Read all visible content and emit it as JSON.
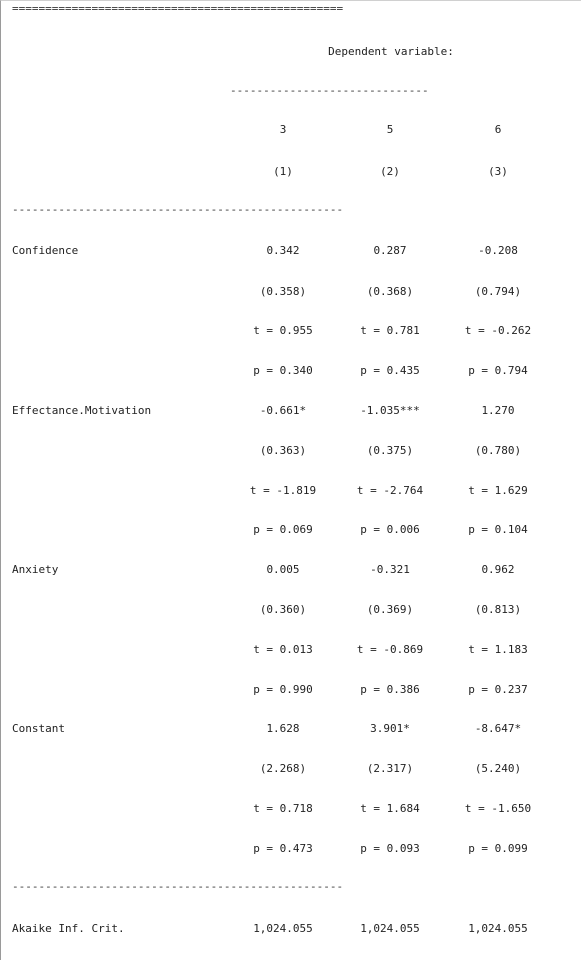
{
  "table": {
    "top_rule": "==================================================",
    "mid_rule": "--------------------------------------------------",
    "header_rule": "------------------------------",
    "dep_var_label": "Dependent variable:",
    "columns": [
      {
        "name": "3",
        "num": "(1)"
      },
      {
        "name": "5",
        "num": "(2)"
      },
      {
        "name": "6",
        "num": "(3)"
      }
    ],
    "rows": [
      {
        "label": "Confidence",
        "coef": [
          "0.342",
          "0.287",
          "-0.208"
        ],
        "se": [
          "(0.358)",
          "(0.368)",
          "(0.794)"
        ],
        "t": [
          "t = 0.955",
          "t = 0.781",
          "t = -0.262"
        ],
        "p": [
          "p = 0.340",
          "p = 0.435",
          "p = 0.794"
        ]
      },
      {
        "label": "Effectance.Motivation",
        "coef": [
          "-0.661*",
          "-1.035***",
          "1.270"
        ],
        "se": [
          "(0.363)",
          "(0.375)",
          "(0.780)"
        ],
        "t": [
          "t = -1.819",
          "t = -2.764",
          "t = 1.629"
        ],
        "p": [
          "p = 0.069",
          "p = 0.006",
          "p = 0.104"
        ]
      },
      {
        "label": "Anxiety",
        "coef": [
          "0.005",
          "-0.321",
          "0.962"
        ],
        "se": [
          "(0.360)",
          "(0.369)",
          "(0.813)"
        ],
        "t": [
          "t = 0.013",
          "t = -0.869",
          "t = 1.183"
        ],
        "p": [
          "p = 0.990",
          "p = 0.386",
          "p = 0.237"
        ]
      },
      {
        "label": "Constant",
        "coef": [
          "1.628",
          "3.901*",
          "-8.647*"
        ],
        "se": [
          "(2.268)",
          "(2.317)",
          "(5.240)"
        ],
        "t": [
          "t = 0.718",
          "t = 1.684",
          "t = -1.650"
        ],
        "p": [
          "p = 0.473",
          "p = 0.093",
          "p = 0.099"
        ]
      }
    ],
    "aic": {
      "label": "Akaike Inf. Crit.",
      "values": [
        "1,024.055",
        "1,024.055",
        "1,024.055"
      ]
    }
  }
}
